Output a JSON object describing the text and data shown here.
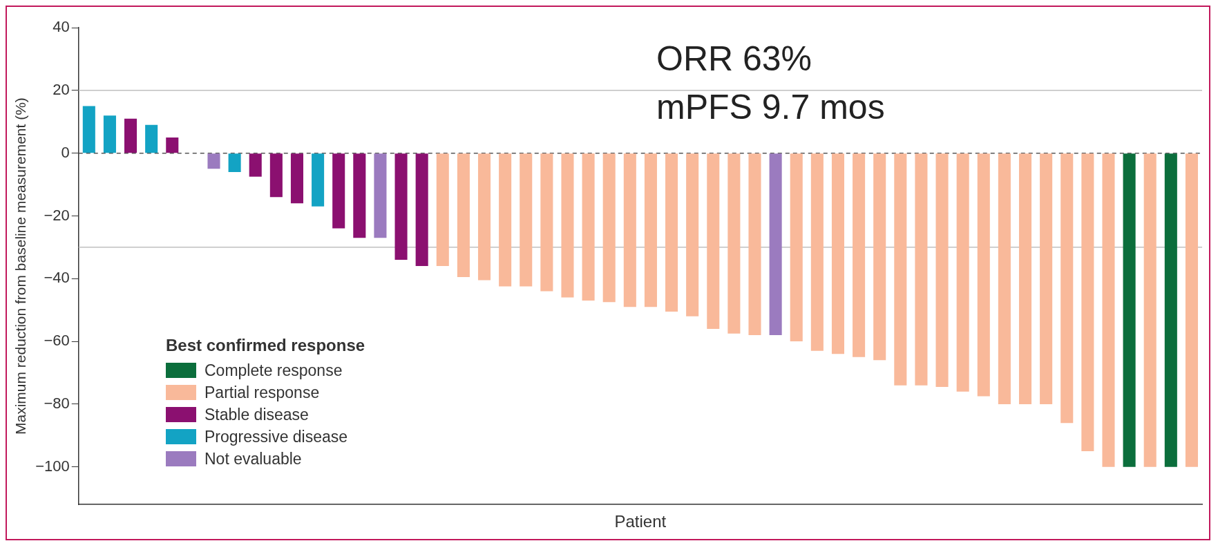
{
  "chart_data": {
    "type": "bar",
    "xlabel": "Patient",
    "ylabel": "Maximum reduction from baseline measurement (%)",
    "legend_title": "Best confirmed response",
    "legend": "bottom left",
    "grid": false,
    "categories": [
      null,
      null,
      null,
      null,
      null,
      null,
      null,
      null,
      null,
      null,
      null,
      null,
      null,
      null,
      null,
      null,
      null,
      null,
      null,
      null,
      null,
      null,
      null,
      null,
      null,
      null,
      null,
      null,
      null,
      null,
      null,
      null,
      null,
      null,
      null,
      null,
      null,
      null,
      null,
      null,
      null,
      null,
      null,
      null,
      null,
      null,
      null,
      null,
      null,
      null,
      null,
      null,
      null,
      null
    ],
    "ylim": [
      -112,
      40
    ],
    "yticks": [
      40,
      20,
      0,
      -20,
      -40,
      -60,
      -80,
      -100
    ],
    "series": [
      {
        "name": "Complete response",
        "color": "#0b6e3c",
        "values": [
          null,
          null,
          null,
          null,
          null,
          null,
          null,
          null,
          null,
          null,
          null,
          null,
          null,
          null,
          null,
          null,
          null,
          null,
          null,
          null,
          null,
          null,
          null,
          null,
          null,
          null,
          null,
          null,
          null,
          null,
          null,
          null,
          null,
          null,
          null,
          null,
          null,
          null,
          null,
          null,
          null,
          null,
          null,
          null,
          null,
          null,
          null,
          null,
          null,
          null,
          -100,
          null,
          -100,
          null
        ]
      },
      {
        "name": "Partial response",
        "color": "#f9b99a",
        "values": [
          null,
          null,
          null,
          null,
          null,
          null,
          null,
          null,
          null,
          null,
          null,
          null,
          null,
          null,
          null,
          null,
          null,
          -36,
          -39.5,
          -40.5,
          -42.5,
          -42.5,
          -44,
          -46,
          -47,
          -47.5,
          -49,
          -49,
          -50.5,
          -52,
          -56,
          -57.5,
          -58,
          null,
          -60,
          -63,
          -64,
          -65,
          -66,
          -74,
          -74,
          -74.5,
          -76,
          -77.5,
          -80,
          -80,
          -80,
          -86,
          -95,
          -100,
          null,
          -100,
          null,
          -100
        ]
      },
      {
        "name": "Stable disease",
        "color": "#8b1070",
        "values": [
          null,
          null,
          11,
          null,
          5,
          null,
          null,
          null,
          -7.5,
          -14,
          -16,
          null,
          -24,
          -27,
          null,
          -34,
          -36,
          null,
          null,
          null,
          null,
          null,
          null,
          null,
          null,
          null,
          null,
          null,
          null,
          null,
          null,
          null,
          null,
          null,
          null,
          null,
          null,
          null,
          null,
          null,
          null,
          null,
          null,
          null,
          null,
          null,
          null,
          null,
          null,
          null,
          null,
          null,
          null,
          null
        ]
      },
      {
        "name": "Progressive disease",
        "color": "#13a3c4",
        "values": [
          15,
          12,
          null,
          9,
          null,
          null,
          null,
          -6,
          null,
          null,
          null,
          -17,
          null,
          null,
          null,
          null,
          null,
          null,
          null,
          null,
          null,
          null,
          null,
          null,
          null,
          null,
          null,
          null,
          null,
          null,
          null,
          null,
          null,
          null,
          null,
          null,
          null,
          null,
          null,
          null,
          null,
          null,
          null,
          null,
          null,
          null,
          null,
          null,
          null,
          null,
          null,
          null,
          null,
          null
        ]
      },
      {
        "name": "Not evaluable",
        "color": "#9b7bbf",
        "values": [
          null,
          null,
          null,
          null,
          null,
          null,
          -5,
          null,
          null,
          null,
          null,
          null,
          null,
          null,
          -27,
          null,
          null,
          null,
          null,
          null,
          null,
          null,
          null,
          null,
          null,
          null,
          null,
          null,
          null,
          null,
          null,
          null,
          null,
          -58,
          null,
          null,
          null,
          null,
          null,
          null,
          null,
          null,
          null,
          null,
          null,
          null,
          null,
          null,
          null,
          null,
          null,
          null,
          null,
          null
        ]
      }
    ],
    "ref_lines": [
      {
        "axis": "y",
        "value": 20,
        "color": "#bfbfbf",
        "line_style": "solid"
      },
      {
        "axis": "y",
        "value": 0,
        "color": "#555555",
        "line_style": "dashed"
      },
      {
        "axis": "y",
        "value": -30,
        "color": "#bfbfbf",
        "line_style": "solid"
      }
    ],
    "annotations": [
      "ORR 63%",
      "mPFS 9.7 mos"
    ]
  }
}
